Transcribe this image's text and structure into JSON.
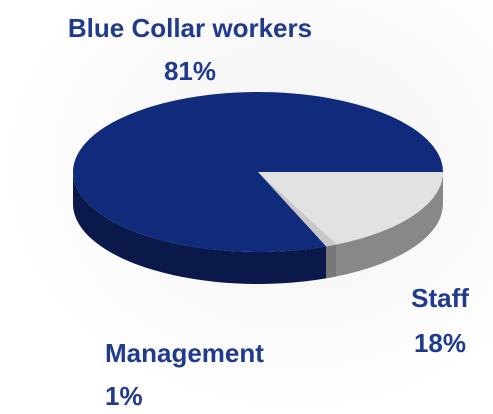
{
  "chart_data": {
    "type": "pie",
    "categories": [
      "Staff",
      "Management",
      "Blue Collar workers"
    ],
    "values": [
      18,
      1,
      81
    ],
    "value_labels": [
      "18%",
      "1%",
      "81%"
    ],
    "colors": [
      "#e2e2e2",
      "#c8c8c8",
      "#102a7c"
    ]
  }
}
